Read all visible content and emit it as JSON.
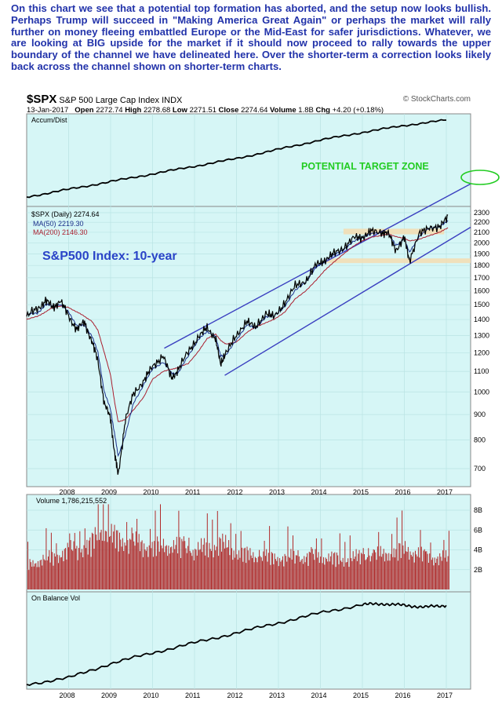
{
  "annotation_text": "On this chart we see that a potential top formation has aborted, and the setup now looks bullish. Perhaps Trump will succeed in \"Making America Great Again\" or perhaps the market will rally further on money fleeing embattled Europe or the Mid-East for safer jurisdictions. Whatever, we are looking at BIG upside for the market if it should now proceed to rally towards the upper boundary of the channel we have delineated here. Over the shorter-term a correction looks likely back across the channel shown on shorter-term charts.",
  "header": {
    "symbol": "$SPX",
    "name": "S&P 500 Large Cap Index",
    "exchange": "INDX",
    "watermark": "© StockCharts.com",
    "date": "13-Jan-2017",
    "open_label": "Open",
    "open": "2272.74",
    "high_label": "High",
    "high": "2278.68",
    "low_label": "Low",
    "low": "2271.51",
    "close_label": "Close",
    "close": "2274.64",
    "volume_label": "Volume",
    "volume": "1.8B",
    "chg_label": "Chg",
    "chg": "+4.20 (+0.18%)"
  },
  "colors": {
    "panel_bg": "#d6f6f6",
    "price": "#000000",
    "ma50": "#1a2f8a",
    "ma200": "#aa1f2f",
    "channel": "#3a3fc0",
    "target": "#22cc22",
    "zone": "#f4dcb0",
    "volume": "#b02a2a",
    "annotation": "#2233aa"
  },
  "chart_data": [
    {
      "type": "line",
      "panel": "accum-dist",
      "legend": [
        "Accum/Dist"
      ],
      "x": [
        2007.0,
        2008.0,
        2009.0,
        2010.0,
        2011.0,
        2012.0,
        2013.0,
        2014.0,
        2015.0,
        2016.0,
        2017.0
      ],
      "series": [
        {
          "name": "Accum/Dist",
          "values": [
            0.0,
            0.1,
            0.2,
            0.3,
            0.4,
            0.5,
            0.62,
            0.74,
            0.84,
            0.93,
            1.0
          ]
        }
      ]
    },
    {
      "type": "line",
      "panel": "price",
      "legend": [
        "$SPX (Daily) 2274.64",
        "MA(50) 2219.30",
        "MA(200) 2146.30"
      ],
      "annotations": [
        "S&P500 Index: 10-year",
        "POTENTIAL TARGET ZONE"
      ],
      "y_scale": "log",
      "y_ticks": [
        700,
        800,
        900,
        1000,
        1100,
        1200,
        1300,
        1400,
        1500,
        1600,
        1700,
        1800,
        1900,
        2000,
        2100,
        2200,
        2300
      ],
      "x_ticks": [
        "2008",
        "2009",
        "2010",
        "2011",
        "2012",
        "2013",
        "2014",
        "2015",
        "2016",
        "2017"
      ],
      "x": [
        2007.0,
        2007.25,
        2007.45,
        2007.62,
        2007.8,
        2008.0,
        2008.2,
        2008.38,
        2008.55,
        2008.7,
        2008.85,
        2009.0,
        2009.1,
        2009.18,
        2009.35,
        2009.55,
        2009.8,
        2010.0,
        2010.25,
        2010.45,
        2010.6,
        2010.85,
        2011.1,
        2011.3,
        2011.5,
        2011.62,
        2011.75,
        2012.0,
        2012.25,
        2012.45,
        2012.7,
        2012.9,
        2013.15,
        2013.4,
        2013.65,
        2013.9,
        2014.1,
        2014.3,
        2014.55,
        2014.8,
        2015.0,
        2015.2,
        2015.45,
        2015.62,
        2015.8,
        2016.0,
        2016.12,
        2016.35,
        2016.6,
        2016.85,
        2017.04
      ],
      "series": [
        {
          "name": "$SPX",
          "values": [
            1420,
            1470,
            1530,
            1480,
            1530,
            1420,
            1340,
            1380,
            1270,
            1150,
            950,
            880,
            750,
            676,
            880,
            990,
            1060,
            1120,
            1190,
            1060,
            1110,
            1200,
            1300,
            1340,
            1290,
            1130,
            1210,
            1290,
            1400,
            1340,
            1450,
            1410,
            1520,
            1630,
            1680,
            1800,
            1850,
            1890,
            1960,
            2040,
            2060,
            2100,
            2110,
            2080,
            1940,
            2040,
            1850,
            2070,
            2160,
            2140,
            2275
          ]
        },
        {
          "name": "MA(50)",
          "values": [
            1430,
            1440,
            1500,
            1490,
            1500,
            1450,
            1360,
            1360,
            1300,
            1200,
            1000,
            920,
            820,
            740,
            820,
            950,
            1040,
            1110,
            1150,
            1090,
            1090,
            1180,
            1280,
            1320,
            1300,
            1180,
            1190,
            1270,
            1370,
            1340,
            1420,
            1420,
            1490,
            1600,
            1670,
            1780,
            1840,
            1880,
            1940,
            2010,
            2050,
            2080,
            2100,
            2090,
            1980,
            2030,
            1920,
            2050,
            2150,
            2150,
            2219
          ]
        },
        {
          "name": "MA(200)",
          "values": [
            1400,
            1420,
            1450,
            1480,
            1490,
            1480,
            1450,
            1420,
            1390,
            1330,
            1200,
            1080,
            950,
            870,
            880,
            920,
            980,
            1060,
            1100,
            1110,
            1120,
            1140,
            1210,
            1280,
            1310,
            1270,
            1250,
            1260,
            1320,
            1350,
            1380,
            1400,
            1450,
            1540,
            1600,
            1680,
            1760,
            1820,
            1900,
            1970,
            2020,
            2050,
            2070,
            2080,
            2060,
            2040,
            2020,
            2030,
            2070,
            2100,
            2146
          ]
        }
      ]
    },
    {
      "type": "bar",
      "panel": "volume",
      "legend": [
        "Volume 1,786,215,552"
      ],
      "y_ticks": [
        "2B",
        "4B",
        "6B",
        "8B"
      ],
      "x": [
        2007.0,
        2007.5,
        2008.0,
        2008.5,
        2008.8,
        2009.0,
        2009.5,
        2010.0,
        2010.5,
        2011.0,
        2011.6,
        2012.0,
        2012.5,
        2013.0,
        2013.5,
        2014.0,
        2014.5,
        2015.0,
        2015.5,
        2016.0,
        2016.5,
        2017.0
      ],
      "values": [
        2.6,
        3.2,
        4.0,
        4.5,
        6.5,
        5.5,
        4.8,
        4.4,
        4.6,
        4.0,
        4.8,
        3.8,
        3.4,
        3.3,
        3.3,
        3.4,
        3.1,
        3.4,
        3.6,
        4.2,
        3.4,
        3.2
      ]
    },
    {
      "type": "line",
      "panel": "on-balance-volume",
      "legend": [
        "On Balance Vol"
      ],
      "x": [
        2007.0,
        2008.0,
        2009.0,
        2010.0,
        2011.0,
        2012.0,
        2013.0,
        2014.0,
        2015.0,
        2015.5,
        2016.0,
        2016.5,
        2017.0
      ],
      "series": [
        {
          "name": "On Balance Vol",
          "values": [
            0.0,
            0.08,
            0.25,
            0.38,
            0.5,
            0.62,
            0.74,
            0.86,
            0.96,
            0.97,
            0.95,
            0.93,
            0.95
          ]
        }
      ]
    }
  ]
}
